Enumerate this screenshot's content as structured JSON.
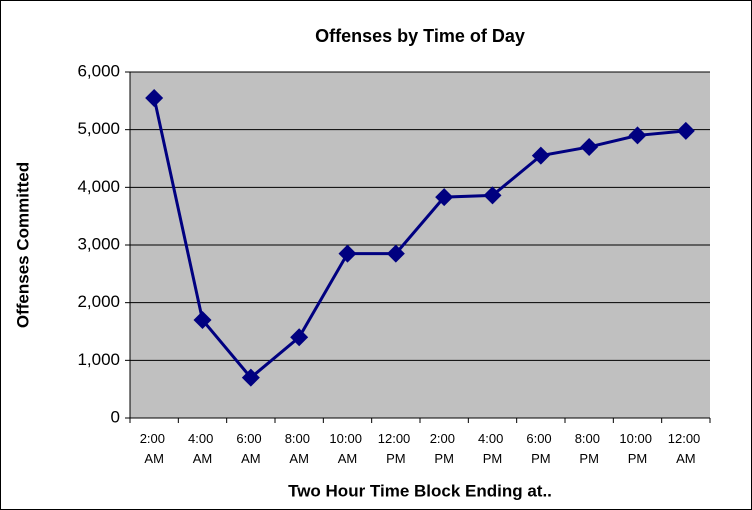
{
  "chart_data": {
    "type": "line",
    "title": "Offenses by Time of Day",
    "x_label": "Two Hour Time Block Ending at..",
    "y_label": "Offenses Committed",
    "categories": [
      "2:00 AM",
      "4:00 AM",
      "6:00 AM",
      "8:00 AM",
      "10:00 AM",
      "12:00 PM",
      "2:00 PM",
      "4:00 PM",
      "6:00 PM",
      "8:00 PM",
      "10:00 PM",
      "12:00 AM"
    ],
    "series": [
      {
        "name": "Offenses Committed",
        "color": "#000080",
        "values": [
          5550,
          1700,
          700,
          1400,
          2850,
          2850,
          3830,
          3860,
          4550,
          4700,
          4900,
          4980
        ]
      }
    ],
    "ylim": [
      0,
      6000
    ],
    "yticks": [
      0,
      {
        "value": 1000,
        "label": "1,000"
      },
      {
        "value": 2000,
        "label": "2,000"
      },
      {
        "value": 3000,
        "label": "3,000"
      },
      {
        "value": 4000,
        "label": "4,000"
      },
      {
        "value": 5000,
        "label": "5,000"
      },
      {
        "value": 6000,
        "label": "6,000"
      }
    ],
    "grid": true,
    "plot_background": "#c0c0c0"
  }
}
